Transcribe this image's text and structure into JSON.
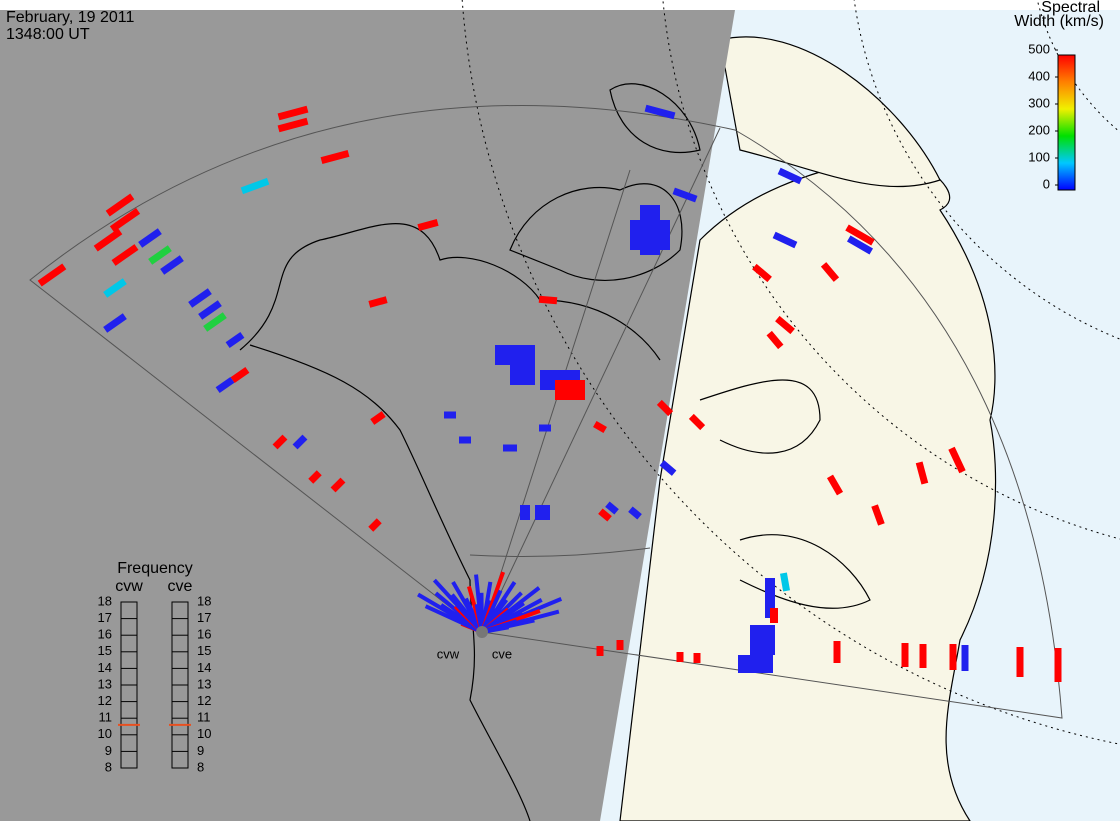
{
  "header": {
    "date": "February, 19 2011",
    "time": "1348:00 UT"
  },
  "colorbar": {
    "title": [
      "Spectral",
      "Width (km/s)"
    ],
    "range": [
      0,
      500
    ],
    "ticks": [
      0,
      100,
      200,
      300,
      400,
      500
    ]
  },
  "frequency": {
    "title": "Frequency",
    "range": [
      8,
      18
    ],
    "ticks": [
      8,
      9,
      10,
      11,
      12,
      13,
      14,
      15,
      16,
      17,
      18
    ],
    "radars": [
      {
        "name": "cvw",
        "value": 10.6
      },
      {
        "name": "cve",
        "value": 10.6
      }
    ]
  },
  "stations": [
    "cvw",
    "cve"
  ]
}
